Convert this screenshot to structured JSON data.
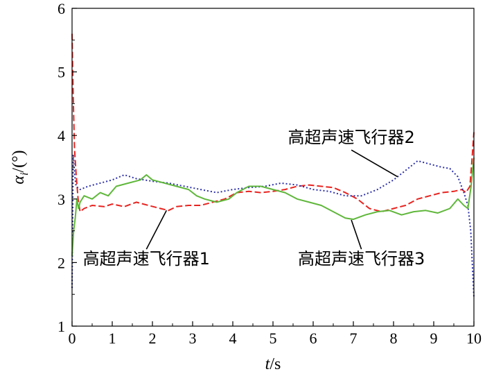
{
  "chart_data": {
    "type": "line",
    "xlabel": {
      "var": "t",
      "unit": "/s"
    },
    "ylabel": {
      "var": "α",
      "sub": "i",
      "unit": "/(°)"
    },
    "xlim": [
      0,
      10
    ],
    "ylim": [
      1,
      6
    ],
    "xticks": [
      "0",
      "1",
      "2",
      "3",
      "4",
      "5",
      "6",
      "7",
      "8",
      "9",
      "10"
    ],
    "yticks": [
      "1",
      "2",
      "3",
      "4",
      "5",
      "6"
    ],
    "grid": false,
    "series": [
      {
        "name": "高超声速飞行器1",
        "color": "#e8231f",
        "style": "dashed",
        "x": [
          0,
          0.03,
          0.06,
          0.1,
          0.15,
          0.2,
          0.3,
          0.5,
          0.8,
          1.0,
          1.3,
          1.6,
          1.9,
          2.2,
          2.4,
          2.6,
          2.9,
          3.2,
          3.5,
          3.8,
          4.1,
          4.4,
          4.7,
          5.0,
          5.3,
          5.6,
          5.9,
          6.2,
          6.5,
          6.8,
          7.1,
          7.4,
          7.7,
          8.0,
          8.3,
          8.6,
          8.9,
          9.2,
          9.5,
          9.7,
          9.8,
          9.9,
          9.95,
          10.0
        ],
        "y": [
          5.6,
          4.6,
          3.8,
          3.4,
          3.0,
          2.8,
          2.85,
          2.9,
          2.88,
          2.92,
          2.88,
          2.95,
          2.9,
          2.85,
          2.82,
          2.88,
          2.9,
          2.9,
          2.95,
          3.0,
          3.1,
          3.12,
          3.1,
          3.12,
          3.15,
          3.2,
          3.22,
          3.2,
          3.18,
          3.1,
          3.0,
          2.85,
          2.8,
          2.85,
          2.9,
          3.0,
          3.05,
          3.1,
          3.12,
          3.15,
          3.1,
          3.2,
          3.6,
          4.05
        ]
      },
      {
        "name": "高超声速飞行器2",
        "color": "#2b2fa8",
        "style": "dotted",
        "x": [
          0,
          0.03,
          0.06,
          0.1,
          0.2,
          0.4,
          0.7,
          1.0,
          1.3,
          1.6,
          2.0,
          2.4,
          2.8,
          3.2,
          3.6,
          4.0,
          4.4,
          4.8,
          5.2,
          5.6,
          6.0,
          6.4,
          6.8,
          7.2,
          7.6,
          8.0,
          8.3,
          8.6,
          8.9,
          9.2,
          9.4,
          9.6,
          9.75,
          9.85,
          9.92,
          10.0
        ],
        "y": [
          1.6,
          3.7,
          3.4,
          3.2,
          3.15,
          3.2,
          3.25,
          3.3,
          3.38,
          3.32,
          3.28,
          3.25,
          3.2,
          3.15,
          3.1,
          3.15,
          3.18,
          3.2,
          3.25,
          3.22,
          3.15,
          3.12,
          3.05,
          3.05,
          3.15,
          3.3,
          3.45,
          3.6,
          3.55,
          3.5,
          3.48,
          3.35,
          3.1,
          2.9,
          2.5,
          1.45
        ]
      },
      {
        "name": "高超声速飞行器3",
        "color": "#5fb73a",
        "style": "solid",
        "x": [
          0,
          0.04,
          0.08,
          0.12,
          0.16,
          0.2,
          0.3,
          0.5,
          0.7,
          0.9,
          1.1,
          1.4,
          1.7,
          1.85,
          2.0,
          2.3,
          2.6,
          2.9,
          3.1,
          3.3,
          3.6,
          3.9,
          4.1,
          4.4,
          4.7,
          5.0,
          5.3,
          5.6,
          5.9,
          6.2,
          6.5,
          6.8,
          7.0,
          7.3,
          7.6,
          7.9,
          8.2,
          8.5,
          8.8,
          9.1,
          9.4,
          9.6,
          9.75,
          9.85,
          9.93,
          10.0
        ],
        "y": [
          2.1,
          2.5,
          2.7,
          3.0,
          2.85,
          2.95,
          3.05,
          3.0,
          3.1,
          3.05,
          3.2,
          3.25,
          3.3,
          3.38,
          3.3,
          3.25,
          3.2,
          3.15,
          3.05,
          3.0,
          2.95,
          3.0,
          3.1,
          3.2,
          3.2,
          3.15,
          3.1,
          3.0,
          2.95,
          2.9,
          2.8,
          2.7,
          2.68,
          2.75,
          2.8,
          2.82,
          2.75,
          2.8,
          2.82,
          2.78,
          2.85,
          3.0,
          2.9,
          2.85,
          3.2,
          3.65
        ]
      }
    ],
    "annotations": [
      {
        "text": "高超声速飞行器1",
        "series": 0,
        "point": [
          2.35,
          2.82
        ],
        "anchor": [
          1.85,
          1.97
        ]
      },
      {
        "text": "高超声速飞行器2",
        "series": 1,
        "point": [
          8.1,
          3.35
        ],
        "anchor": [
          6.95,
          3.88
        ]
      },
      {
        "text": "高超声速飞行器3",
        "series": 2,
        "point": [
          6.95,
          2.67
        ],
        "anchor": [
          7.2,
          1.97
        ]
      }
    ]
  }
}
